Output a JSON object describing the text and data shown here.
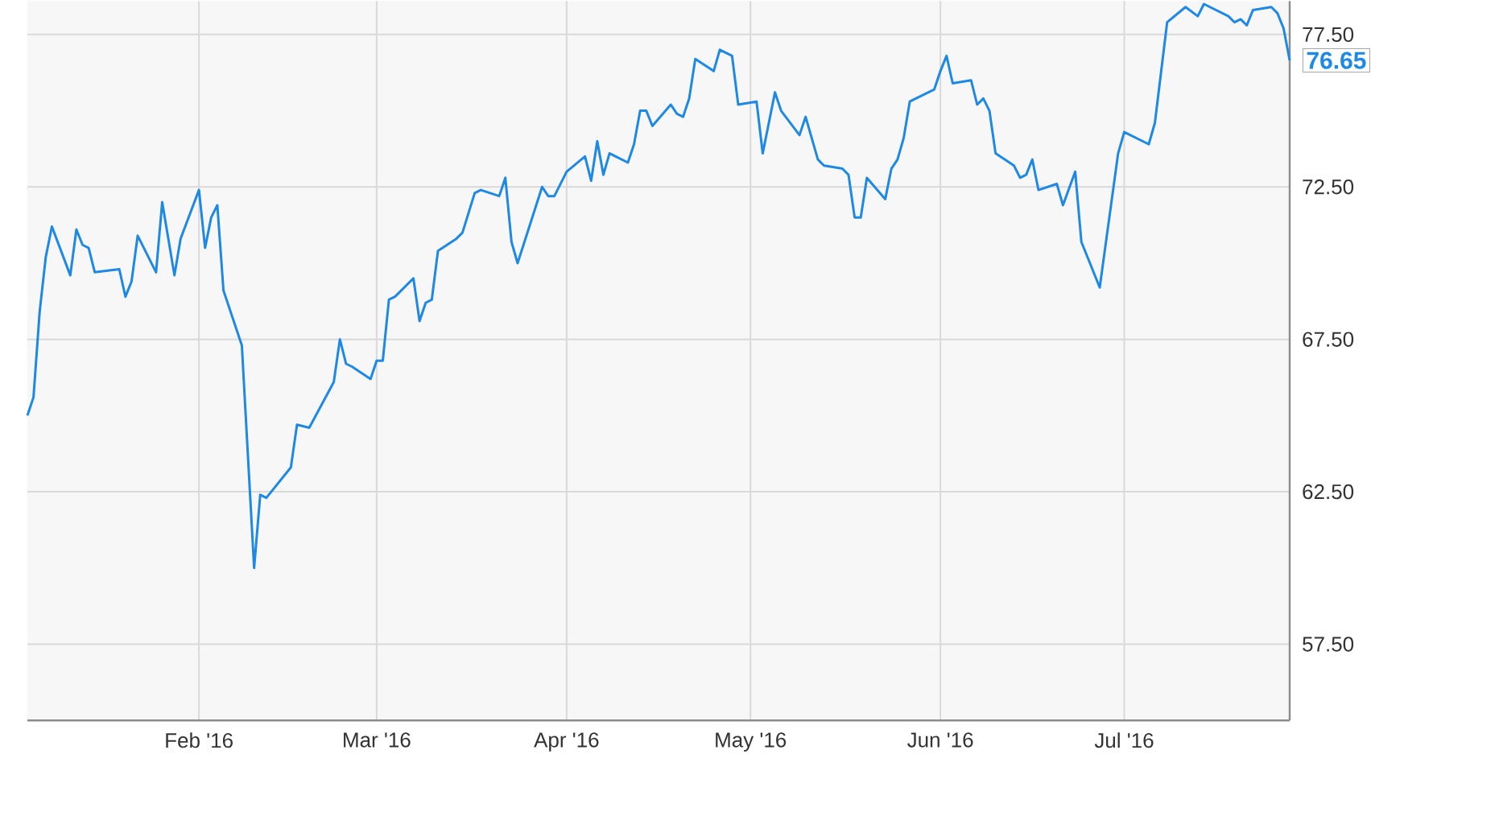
{
  "chart_data": {
    "type": "line",
    "color": "#1e88e5",
    "grid": true,
    "x": [
      "2016-01-04",
      "2016-01-05",
      "2016-01-06",
      "2016-01-07",
      "2016-01-08",
      "2016-01-11",
      "2016-01-12",
      "2016-01-13",
      "2016-01-14",
      "2016-01-15",
      "2016-01-19",
      "2016-01-20",
      "2016-01-21",
      "2016-01-22",
      "2016-01-25",
      "2016-01-26",
      "2016-01-28",
      "2016-01-29",
      "2016-02-01",
      "2016-02-02",
      "2016-02-03",
      "2016-02-04",
      "2016-02-05",
      "2016-02-08",
      "2016-02-10",
      "2016-02-11",
      "2016-02-12",
      "2016-02-16",
      "2016-02-17",
      "2016-02-19",
      "2016-02-23",
      "2016-02-24",
      "2016-02-25",
      "2016-02-26",
      "2016-02-29",
      "2016-03-01",
      "2016-03-02",
      "2016-03-03",
      "2016-03-04",
      "2016-03-07",
      "2016-03-08",
      "2016-03-09",
      "2016-03-10",
      "2016-03-11",
      "2016-03-14",
      "2016-03-15",
      "2016-03-17",
      "2016-03-18",
      "2016-03-21",
      "2016-03-22",
      "2016-03-23",
      "2016-03-24",
      "2016-03-28",
      "2016-03-29",
      "2016-03-30",
      "2016-04-01",
      "2016-04-04",
      "2016-04-05",
      "2016-04-06",
      "2016-04-07",
      "2016-04-08",
      "2016-04-11",
      "2016-04-12",
      "2016-04-13",
      "2016-04-14",
      "2016-04-15",
      "2016-04-18",
      "2016-04-19",
      "2016-04-20",
      "2016-04-21",
      "2016-04-22",
      "2016-04-25",
      "2016-04-26",
      "2016-04-27",
      "2016-04-28",
      "2016-04-29",
      "2016-05-02",
      "2016-05-03",
      "2016-05-05",
      "2016-05-06",
      "2016-05-09",
      "2016-05-10",
      "2016-05-12",
      "2016-05-13",
      "2016-05-16",
      "2016-05-17",
      "2016-05-18",
      "2016-05-19",
      "2016-05-20",
      "2016-05-23",
      "2016-05-24",
      "2016-05-25",
      "2016-05-26",
      "2016-05-27",
      "2016-05-31",
      "2016-06-01",
      "2016-06-02",
      "2016-06-03",
      "2016-06-06",
      "2016-06-07",
      "2016-06-08",
      "2016-06-09",
      "2016-06-10",
      "2016-06-13",
      "2016-06-14",
      "2016-06-15",
      "2016-06-16",
      "2016-06-17",
      "2016-06-20",
      "2016-06-21",
      "2016-06-23",
      "2016-06-24",
      "2016-06-27",
      "2016-06-30",
      "2016-07-01",
      "2016-07-05",
      "2016-07-06",
      "2016-07-08",
      "2016-07-11",
      "2016-07-13",
      "2016-07-14",
      "2016-07-18",
      "2016-07-19",
      "2016-07-20",
      "2016-07-21",
      "2016-07-22",
      "2016-07-25",
      "2016-07-26",
      "2016-07-27",
      "2016-07-28"
    ],
    "values": [
      65.0,
      65.6,
      68.4,
      70.2,
      71.2,
      69.6,
      71.1,
      70.6,
      70.5,
      69.7,
      69.8,
      68.9,
      69.4,
      70.9,
      69.7,
      72.0,
      69.6,
      70.8,
      72.4,
      70.5,
      71.5,
      71.9,
      69.1,
      67.3,
      60.0,
      62.4,
      62.3,
      63.3,
      64.7,
      64.6,
      66.1,
      67.5,
      66.7,
      66.6,
      66.2,
      66.8,
      66.8,
      68.8,
      68.9,
      69.5,
      68.1,
      68.7,
      68.8,
      70.4,
      70.8,
      71.0,
      72.3,
      72.4,
      72.2,
      72.8,
      70.7,
      70.0,
      72.5,
      72.2,
      72.2,
      73.0,
      73.5,
      72.7,
      74.0,
      72.9,
      73.6,
      73.3,
      73.9,
      75.0,
      75.0,
      74.5,
      75.2,
      74.9,
      74.8,
      75.4,
      76.7,
      76.3,
      77.0,
      76.9,
      76.8,
      75.2,
      75.3,
      73.6,
      75.6,
      75.0,
      74.2,
      74.8,
      73.4,
      73.2,
      73.1,
      72.9,
      71.5,
      71.5,
      72.8,
      72.1,
      73.1,
      73.4,
      74.1,
      75.3,
      75.7,
      76.3,
      76.8,
      75.9,
      76.0,
      75.2,
      75.4,
      75.0,
      73.6,
      73.2,
      72.8,
      72.9,
      73.4,
      72.4,
      72.6,
      71.9,
      73.0,
      70.7,
      69.2,
      73.6,
      74.3,
      73.9,
      74.6,
      77.9,
      78.4,
      78.1,
      78.5,
      78.1,
      77.9,
      78.0,
      77.8,
      78.3,
      78.4,
      78.2,
      77.7,
      76.65
    ],
    "xlim": [
      "2016-01-04",
      "2016-07-28"
    ],
    "ylim": [
      55.0,
      78.6
    ],
    "xticks": [
      {
        "value": "2016-02-01",
        "label": "Feb '16"
      },
      {
        "value": "2016-03-01",
        "label": "Mar '16"
      },
      {
        "value": "2016-04-01",
        "label": "Apr '16"
      },
      {
        "value": "2016-05-01",
        "label": "May '16"
      },
      {
        "value": "2016-06-01",
        "label": "Jun '16"
      },
      {
        "value": "2016-07-01",
        "label": "Jul '16"
      }
    ],
    "yticks": [
      {
        "value": 57.5,
        "label": "57.50"
      },
      {
        "value": 62.5,
        "label": "62.50"
      },
      {
        "value": 67.5,
        "label": "67.50"
      },
      {
        "value": 72.5,
        "label": "72.50"
      },
      {
        "value": 77.5,
        "label": "77.50"
      }
    ],
    "annotations": [
      {
        "text": "76.65",
        "x": "2016-07-28",
        "y": 76.65
      }
    ]
  }
}
